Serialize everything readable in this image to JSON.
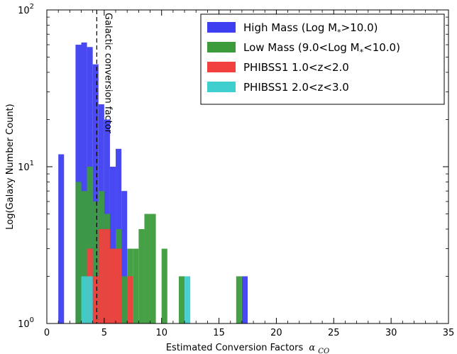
{
  "chart_data": {
    "type": "bar",
    "xlabel": "Estimated Conversion Factors",
    "xlabel_symbol": "α",
    "xlabel_subscript": "CO",
    "ylabel": "Log(Galaxy Number Count)",
    "xlim": [
      0,
      35
    ],
    "ylim": [
      1,
      100
    ],
    "yscale": "log",
    "xticks": [
      0,
      5,
      10,
      15,
      20,
      25,
      30,
      35
    ],
    "xtick_labels": [
      "0",
      "5",
      "10",
      "15",
      "20",
      "25",
      "30",
      "35"
    ],
    "yticks": [
      1,
      10,
      100
    ],
    "ytick_labels": [
      {
        "base": "10",
        "exp": "0"
      },
      {
        "base": "10",
        "exp": "1"
      },
      {
        "base": "10",
        "exp": "2"
      }
    ],
    "legend_position": "top-right",
    "bin_width": 0.5,
    "series": [
      {
        "name": "High Mass (Log M*>10.0)",
        "legend_text": "High Mass (Log M",
        "legend_sub": "*",
        "legend_tail": ">10.0)",
        "color": "#3f3ff2",
        "bins": [
          {
            "x0": 1.0,
            "count": 12
          },
          {
            "x0": 2.5,
            "count": 60
          },
          {
            "x0": 3.0,
            "count": 62
          },
          {
            "x0": 3.5,
            "count": 58
          },
          {
            "x0": 4.0,
            "count": 45
          },
          {
            "x0": 4.5,
            "count": 25
          },
          {
            "x0": 5.0,
            "count": 20
          },
          {
            "x0": 5.5,
            "count": 10
          },
          {
            "x0": 6.0,
            "count": 13
          },
          {
            "x0": 6.5,
            "count": 7
          },
          {
            "x0": 17.0,
            "count": 2
          }
        ]
      },
      {
        "name": "Low Mass (9.0<Log M*<10.0)",
        "legend_text": "Low Mass (9.0<Log M",
        "legend_sub": "*",
        "legend_tail": "<10.0)",
        "color": "#3c9c3c",
        "bins": [
          {
            "x0": 2.5,
            "count": 8
          },
          {
            "x0": 3.0,
            "count": 7
          },
          {
            "x0": 3.5,
            "count": 10
          },
          {
            "x0": 4.0,
            "count": 6
          },
          {
            "x0": 4.5,
            "count": 7
          },
          {
            "x0": 5.0,
            "count": 5
          },
          {
            "x0": 5.5,
            "count": 3
          },
          {
            "x0": 6.0,
            "count": 4
          },
          {
            "x0": 6.5,
            "count": 2
          },
          {
            "x0": 7.0,
            "count": 3
          },
          {
            "x0": 7.5,
            "count": 3
          },
          {
            "x0": 8.0,
            "count": 4
          },
          {
            "x0": 8.5,
            "count": 5
          },
          {
            "x0": 9.0,
            "count": 5
          },
          {
            "x0": 10.0,
            "count": 3
          },
          {
            "x0": 11.5,
            "count": 2
          },
          {
            "x0": 16.5,
            "count": 2
          }
        ]
      },
      {
        "name": "PHIBSS1 1.0<z<2.0",
        "color": "#f23f3f",
        "bins": [
          {
            "x0": 3.5,
            "count": 3
          },
          {
            "x0": 4.0,
            "count": 2
          },
          {
            "x0": 4.5,
            "count": 4
          },
          {
            "x0": 5.0,
            "count": 4
          },
          {
            "x0": 5.5,
            "count": 3
          },
          {
            "x0": 6.0,
            "count": 3
          },
          {
            "x0": 7.0,
            "count": 2
          }
        ]
      },
      {
        "name": "PHIBSS1 2.0<z<3.0",
        "color": "#3fcfcf",
        "bins": [
          {
            "x0": 3.0,
            "count": 2
          },
          {
            "x0": 3.5,
            "count": 2
          },
          {
            "x0": 12.0,
            "count": 2
          }
        ]
      }
    ],
    "reference_line": {
      "x": 4.35,
      "label": "Galactic conversion factor"
    }
  }
}
